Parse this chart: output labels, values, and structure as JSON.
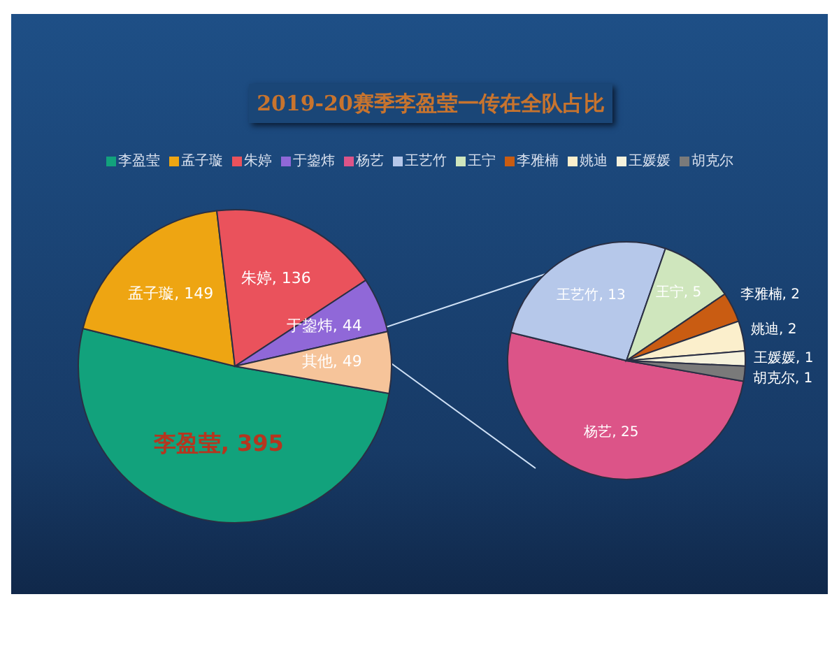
{
  "chart_data": [
    {
      "type": "pie",
      "title": "2019-20赛季李盈莹一传在全队占比",
      "legend": "top",
      "categories": [
        "李盈莹",
        "孟子璇",
        "朱婷",
        "于鋆炜",
        null
      ],
      "values": [
        395,
        149,
        136,
        44,
        49
      ],
      "value_labels": [
        "李盈莹, 395",
        "孟子璇, 149",
        "朱婷, 136",
        "于鋆炜, 44",
        "其他, 49"
      ],
      "colors": [
        "#12a27c",
        "#eea512",
        "#ea525c",
        "#9068d8",
        "#f6c49a"
      ]
    },
    {
      "type": "pie",
      "legend": "top",
      "categories": [
        "杨艺",
        "王艺竹",
        "王宁",
        "李雅楠",
        "姚迪",
        "王媛媛",
        "胡克尔"
      ],
      "values": [
        25,
        13,
        5,
        2,
        2,
        1,
        1
      ],
      "value_labels": [
        "杨艺, 25",
        "王艺竹, 13",
        "王宁, 5",
        "李雅楠, 2",
        "姚迪, 2",
        "王媛媛, 1",
        "胡克尔, 1"
      ],
      "colors": [
        "#dc5488",
        "#b6c8ea",
        "#cfe6bd",
        "#c95c12",
        "#fbefcc",
        "#f6f2dc",
        "#7a7a7a"
      ]
    }
  ]
}
